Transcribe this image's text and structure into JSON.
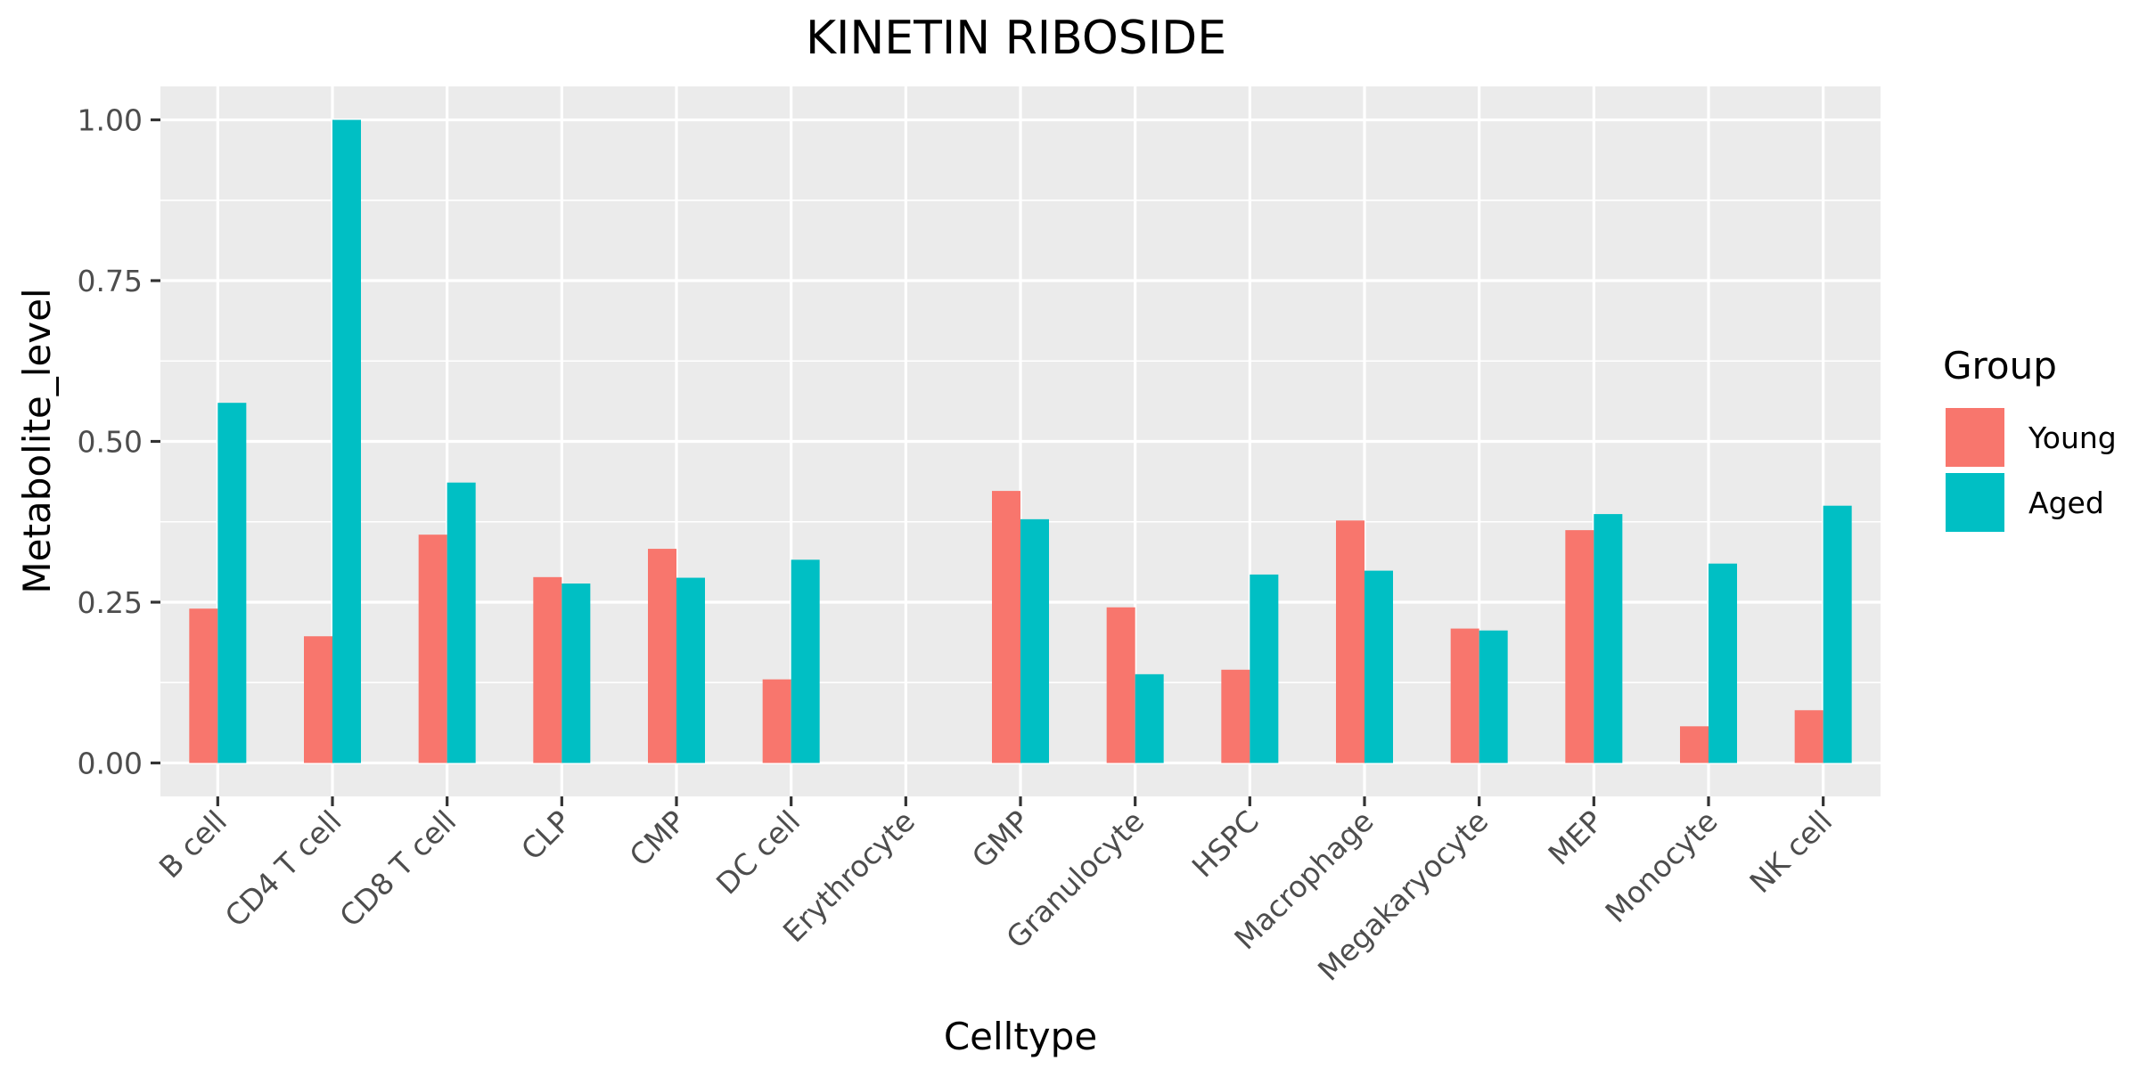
{
  "chart_data": {
    "type": "bar",
    "title": "KINETIN RIBOSIDE",
    "xlabel": "Celltype",
    "ylabel": "Metabolite_level",
    "categories": [
      "B cell",
      "CD4 T cell",
      "CD8 T cell",
      "CLP",
      "CMP",
      "DC cell",
      "Erythrocyte",
      "GMP",
      "Granulocyte",
      "HSPC",
      "Macrophage",
      "Megakaryocyte",
      "MEP",
      "Monocyte",
      "NK cell"
    ],
    "series": [
      {
        "name": "Young",
        "color": "#F8766D",
        "values": [
          0.24,
          0.197,
          0.355,
          0.289,
          0.333,
          0.13,
          0,
          0.423,
          0.242,
          0.145,
          0.377,
          0.209,
          0.362,
          0.057,
          0.082
        ]
      },
      {
        "name": "Aged",
        "color": "#00BFC4",
        "values": [
          0.56,
          1.0,
          0.436,
          0.279,
          0.288,
          0.316,
          0,
          0.379,
          0.138,
          0.293,
          0.299,
          0.206,
          0.387,
          0.31,
          0.4
        ]
      }
    ],
    "ylim": [
      -0.052,
      1.052
    ],
    "yticks": [
      "0.00",
      "0.25",
      "0.50",
      "0.75",
      "1.00"
    ],
    "grid": true,
    "legend": {
      "title": "Group",
      "placement": "right"
    },
    "panel_color": "#EBEBEB",
    "grid_color": "#FFFFFF"
  }
}
